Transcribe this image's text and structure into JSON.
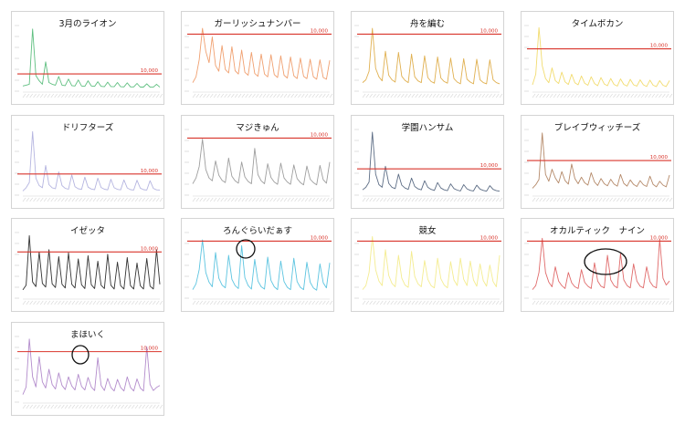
{
  "chart_data": [
    {
      "type": "line",
      "title": "3月のライオン",
      "color": "#5fbf80",
      "ref_line": {
        "value": 10000,
        "label": "10,000",
        "color": "#d9342b"
      },
      "ylim": [
        0,
        38000
      ],
      "values": [
        3000,
        3500,
        4000,
        36000,
        9000,
        6000,
        4000,
        17000,
        5000,
        4000,
        3500,
        8500,
        3500,
        3200,
        7000,
        3200,
        3000,
        6500,
        3000,
        2800,
        6000,
        3000,
        2800,
        5500,
        2800,
        2600,
        5200,
        2700,
        2600,
        5000,
        2600,
        2500,
        4800,
        2500,
        2500,
        4500,
        2400,
        2400,
        4300,
        2400,
        2300,
        4000,
        2300
      ]
    },
    {
      "type": "line",
      "title": "ガーリッシュナンバー",
      "color": "#f0a070",
      "ref_line": {
        "value": 10000,
        "label": "10,000",
        "color": "#d9342b"
      },
      "ylim": [
        0,
        11500
      ],
      "values": [
        1500,
        2500,
        5500,
        11000,
        7000,
        5000,
        9500,
        4500,
        3500,
        8000,
        3800,
        3200,
        7800,
        3600,
        3000,
        7200,
        3300,
        2800,
        6800,
        3100,
        2600,
        6500,
        3000,
        2500,
        6400,
        2900,
        2400,
        6200,
        2800,
        2300,
        6000,
        2700,
        2200,
        5800,
        2600,
        2200,
        5600,
        2500,
        2100,
        5500,
        2400,
        2100,
        5400
      ]
    },
    {
      "type": "line",
      "title": "舟を編む",
      "color": "#e0b050",
      "ref_line": {
        "value": 10000,
        "label": "10,000",
        "color": "#d9342b"
      },
      "ylim": [
        0,
        11500
      ],
      "values": [
        1500,
        2000,
        3500,
        11000,
        4000,
        2500,
        1800,
        7000,
        2800,
        2000,
        1600,
        6800,
        2600,
        1900,
        1500,
        6500,
        2500,
        1800,
        1500,
        6200,
        2400,
        1700,
        1400,
        6000,
        2300,
        1700,
        1400,
        5800,
        2200,
        1600,
        1300,
        5700,
        2100,
        1600,
        1300,
        5600,
        2000,
        1500,
        1300,
        5500,
        2000,
        1500,
        1300
      ]
    },
    {
      "type": "line",
      "title": "タイムボカン",
      "color": "#f2dc70",
      "ref_line": {
        "value": 10000,
        "label": "10,000",
        "color": "#d9342b"
      },
      "ylim": [
        0,
        15500
      ],
      "values": [
        1500,
        4000,
        15000,
        6000,
        3000,
        2000,
        5500,
        2500,
        1800,
        4500,
        2200,
        1600,
        4000,
        2000,
        1500,
        3600,
        1900,
        1400,
        3400,
        1800,
        1300,
        3200,
        1700,
        1300,
        3000,
        1600,
        1200,
        2900,
        1600,
        1200,
        2800,
        1500,
        1200,
        2700,
        1500,
        1100,
        2600,
        1400,
        1100,
        2500,
        1400,
        1100,
        2500
      ]
    },
    {
      "type": "line",
      "title": "ドリフターズ",
      "color": "#b5b5e0",
      "ref_line": {
        "value": 10000,
        "label": "10,000",
        "color": "#d9342b"
      },
      "ylim": [
        0,
        31000
      ],
      "values": [
        2000,
        3500,
        6000,
        30000,
        8000,
        4500,
        3500,
        14000,
        5000,
        3500,
        3000,
        11000,
        4500,
        3200,
        2800,
        9500,
        4000,
        3000,
        2700,
        8500,
        3800,
        2900,
        2600,
        8000,
        3600,
        2800,
        2500,
        7500,
        3500,
        2700,
        2500,
        7200,
        3400,
        2600,
        2400,
        7000,
        3300,
        2600,
        2400,
        6800,
        3200,
        2500,
        2400
      ]
    },
    {
      "type": "line",
      "title": "マジきゅん",
      "color": "#9e9e9e",
      "ref_line": {
        "value": 10000,
        "label": "10,000",
        "color": "#d9342b"
      },
      "ylim": [
        0,
        11500
      ],
      "values": [
        2000,
        3000,
        5000,
        9800,
        4500,
        3000,
        2500,
        6000,
        3500,
        2600,
        2200,
        6500,
        3300,
        2500,
        2100,
        5800,
        3200,
        2400,
        2000,
        8200,
        3600,
        2500,
        2000,
        5500,
        3100,
        2300,
        1900,
        5600,
        3000,
        2300,
        1900,
        5300,
        2900,
        2200,
        1800,
        5100,
        2800,
        2200,
        1800,
        5200,
        2700,
        2100,
        5800
      ]
    },
    {
      "type": "line",
      "title": "学園ハンサム",
      "color": "#5d6d85",
      "ref_line": {
        "value": 10000,
        "label": "10,000",
        "color": "#d9342b"
      },
      "ylim": [
        0,
        25000
      ],
      "values": [
        2000,
        3000,
        5000,
        24000,
        8000,
        4000,
        3000,
        11000,
        4500,
        3000,
        2500,
        8000,
        3800,
        2700,
        2200,
        6500,
        3300,
        2400,
        2000,
        5500,
        3000,
        2200,
        1800,
        4800,
        2700,
        2000,
        1700,
        4300,
        2500,
        1900,
        1600,
        4000,
        2400,
        1800,
        1600,
        3800,
        2300,
        1800,
        1500,
        3600,
        2200,
        1700,
        1500
      ]
    },
    {
      "type": "line",
      "title": "ブレイブウィッチーズ",
      "color": "#b58a6a",
      "ref_line": {
        "value": 10000,
        "label": "10,000",
        "color": "#d9342b"
      },
      "ylim": [
        0,
        19000
      ],
      "values": [
        2000,
        3000,
        4500,
        18000,
        6000,
        4000,
        7500,
        5000,
        3500,
        6800,
        4200,
        3200,
        9000,
        4800,
        3300,
        5200,
        3600,
        2900,
        6500,
        3800,
        2800,
        4800,
        3300,
        2700,
        4600,
        3200,
        2600,
        6000,
        3400,
        2600,
        4400,
        3100,
        2500,
        4200,
        3000,
        2500,
        5500,
        3100,
        2400,
        4000,
        2900,
        2400,
        5800
      ]
    },
    {
      "type": "line",
      "title": "イゼッタ",
      "color": "#333333",
      "ref_line": {
        "value": 10000,
        "label": "10,000",
        "color": "#d9342b"
      },
      "ylim": [
        0,
        14200
      ],
      "values": [
        1800,
        2800,
        13500,
        3500,
        2500,
        10000,
        3200,
        2400,
        10500,
        3100,
        2300,
        9000,
        3000,
        2200,
        9800,
        3000,
        2200,
        8500,
        2900,
        2100,
        9200,
        2900,
        2100,
        8000,
        2800,
        2100,
        9500,
        2800,
        2000,
        7800,
        2700,
        2000,
        8800,
        2700,
        2000,
        7600,
        2700,
        2000,
        8600,
        2600,
        2000,
        10500,
        3000
      ]
    },
    {
      "type": "line",
      "title": "ろんぐらいだぁす",
      "color": "#5cc4e0",
      "ref_line": {
        "value": 10000,
        "label": "10,000",
        "color": "#d9342b"
      },
      "ylim": [
        0,
        11500
      ],
      "values": [
        1500,
        2500,
        5000,
        10200,
        4500,
        2800,
        2000,
        8000,
        3500,
        2300,
        1800,
        7500,
        3300,
        2200,
        1700,
        9200,
        3600,
        2200,
        1600,
        6800,
        3000,
        2000,
        1600,
        7200,
        3100,
        2000,
        1500,
        6500,
        2900,
        1900,
        1500,
        7000,
        2900,
        1900,
        1500,
        6300,
        2800,
        1800,
        1400,
        6000,
        2700,
        1800,
        6200
      ]
    },
    {
      "type": "line",
      "title": "競女",
      "color": "#f4ec90",
      "ref_line": {
        "value": 10000,
        "label": "10,000",
        "color": "#d9342b"
      },
      "ylim": [
        0,
        11500
      ],
      "values": [
        1500,
        2200,
        4500,
        10800,
        5000,
        3000,
        2200,
        8500,
        4000,
        2600,
        2000,
        7500,
        3500,
        2300,
        1900,
        8200,
        3800,
        2500,
        2000,
        6600,
        3300,
        2200,
        1800,
        7000,
        3400,
        2300,
        1800,
        6400,
        3200,
        2200,
        7000,
        3300,
        2200,
        6500,
        3200,
        2100,
        6000,
        3100,
        2100,
        5800,
        2900,
        2000,
        7500
      ]
    },
    {
      "type": "line",
      "title": "オカルティック　ナイン",
      "color": "#e06a6a",
      "ref_line": {
        "value": 10000,
        "label": "10,000",
        "color": "#d9342b"
      },
      "ylim": [
        0,
        11500
      ],
      "values": [
        1500,
        2200,
        4500,
        10500,
        4500,
        2800,
        2000,
        5500,
        3000,
        2200,
        1700,
        4500,
        2700,
        2000,
        1700,
        5000,
        2800,
        2100,
        1700,
        6200,
        3000,
        2100,
        1800,
        7500,
        3200,
        2200,
        1800,
        7800,
        3200,
        2200,
        1800,
        6000,
        3000,
        2100,
        1800,
        5500,
        2900,
        2100,
        1800,
        10300,
        3500,
        2300,
        3000
      ]
    },
    {
      "type": "line",
      "title": "まほいく",
      "color": "#b38ccc",
      "ref_line": {
        "value": 10000,
        "label": "10,000",
        "color": "#d9342b"
      },
      "ylim": [
        0,
        13000
      ],
      "values": [
        1500,
        3000,
        12500,
        5000,
        3000,
        9000,
        4000,
        2800,
        6500,
        3500,
        2600,
        5800,
        3300,
        2500,
        5000,
        3200,
        2400,
        5500,
        3100,
        2400,
        4900,
        3000,
        2300,
        8800,
        3300,
        2300,
        4700,
        2900,
        2200,
        4500,
        2900,
        2200,
        5000,
        2900,
        2200,
        4600,
        2800,
        2200,
        11000,
        3500,
        2300,
        2900,
        3300
      ]
    }
  ]
}
